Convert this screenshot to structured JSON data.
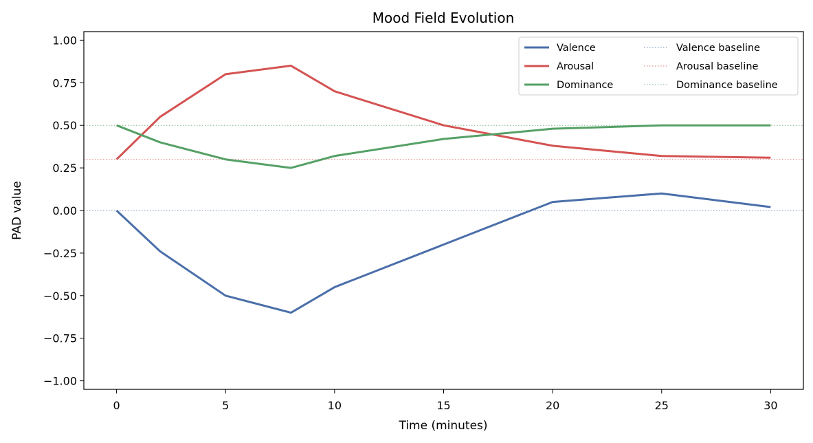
{
  "chart_data": {
    "type": "line",
    "title": "Mood Field Evolution",
    "xlabel": "Time (minutes)",
    "ylabel": "PAD value",
    "xlim": [
      -1.5,
      31.5
    ],
    "ylim": [
      -1.05,
      1.05
    ],
    "xticks": [
      0,
      5,
      10,
      15,
      20,
      25,
      30
    ],
    "yticks": [
      -1.0,
      -0.75,
      -0.5,
      -0.25,
      0.0,
      0.25,
      0.5,
      0.75,
      1.0
    ],
    "ytick_labels": [
      "−1.00",
      "−0.75",
      "−0.50",
      "−0.25",
      "0.00",
      "0.25",
      "0.50",
      "0.75",
      "1.00"
    ],
    "grid": false,
    "legend_position": "top-right",
    "x": [
      0,
      2,
      5,
      8,
      10,
      15,
      20,
      25,
      30
    ],
    "series": [
      {
        "name": "Valence",
        "color": "#4a6fa9",
        "values": [
          0.0,
          -0.24,
          -0.5,
          -0.6,
          -0.45,
          -0.2,
          0.05,
          0.1,
          0.02
        ]
      },
      {
        "name": "Arousal",
        "color": "#d45352",
        "values": [
          0.3,
          0.55,
          0.8,
          0.85,
          0.7,
          0.5,
          0.38,
          0.32,
          0.31
        ]
      },
      {
        "name": "Dominance",
        "color": "#55a066",
        "values": [
          0.5,
          0.4,
          0.3,
          0.25,
          0.32,
          0.42,
          0.48,
          0.5,
          0.5
        ]
      }
    ],
    "baselines": [
      {
        "name": "Valence baseline",
        "color": "#4a6fa9",
        "value": 0.0
      },
      {
        "name": "Arousal baseline",
        "color": "#d45352",
        "value": 0.3
      },
      {
        "name": "Dominance baseline",
        "color": "#55a066",
        "value": 0.5
      }
    ]
  }
}
